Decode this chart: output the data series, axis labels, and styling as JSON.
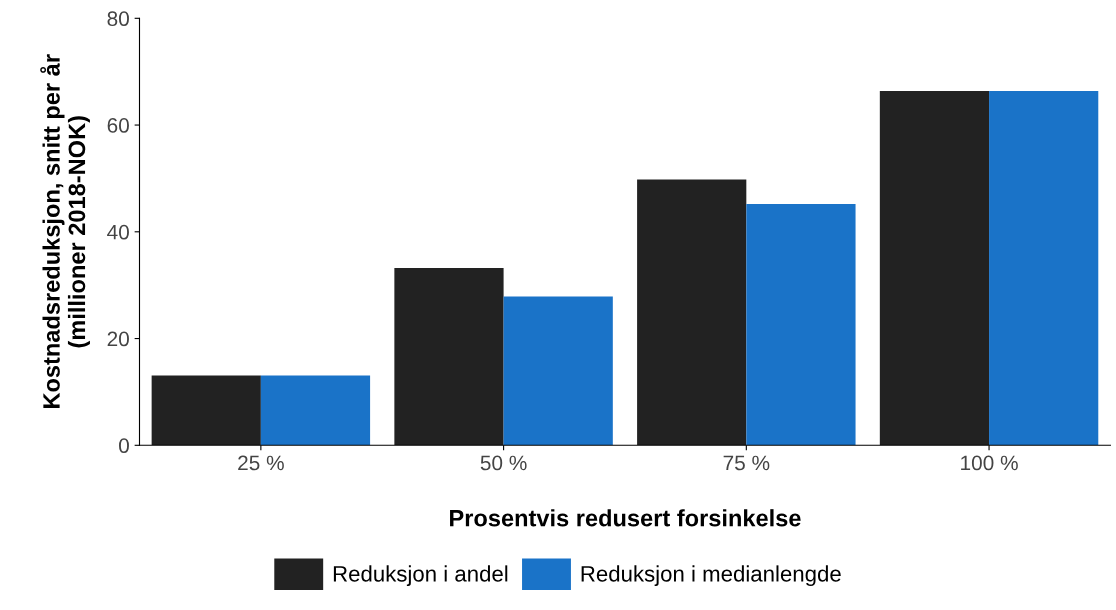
{
  "chart_data": {
    "type": "bar",
    "xlabel": "Prosentvis redusert forsinkelse",
    "ylabel": "Kostnadsreduksjon, snitt per år\n(millioner 2018-NOK)",
    "categories": [
      "25 %",
      "50 %",
      "75 %",
      "100 %"
    ],
    "series": [
      {
        "name": "Reduksjon i andel",
        "color": "#222222",
        "values": [
          13.1,
          33.2,
          49.8,
          66.4
        ]
      },
      {
        "name": "Reduksjon i medianlengde",
        "color": "#1a73c8",
        "values": [
          13.1,
          27.9,
          45.2,
          66.4
        ]
      }
    ],
    "ylim": [
      0,
      80
    ],
    "yticks": [
      0,
      20,
      40,
      60,
      80
    ],
    "grid": false,
    "legend": "bottom"
  }
}
